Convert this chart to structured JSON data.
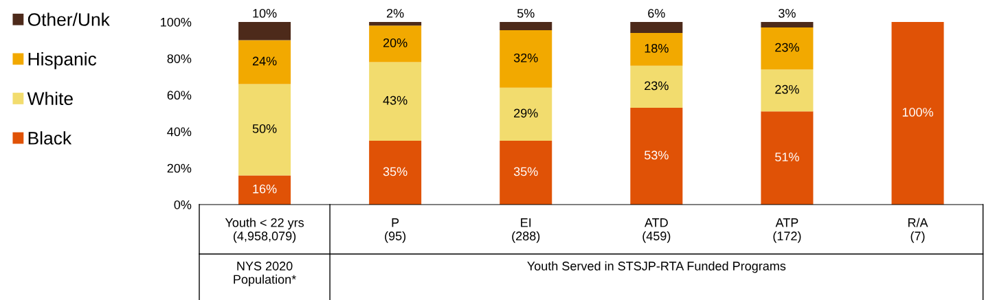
{
  "chart_data": {
    "type": "bar",
    "stacked": true,
    "categories": [
      "Youth < 22 yrs\n(4,958,079)",
      "P\n(95)",
      "EI\n(288)",
      "ATD\n(459)",
      "ATP\n(172)",
      "R/A\n(7)"
    ],
    "series": [
      {
        "name": "Black",
        "color": "#e05206",
        "values": [
          16,
          35,
          35,
          53,
          51,
          100
        ],
        "value_labels": [
          "16%",
          "35%",
          "35%",
          "53%",
          "51%",
          "100%"
        ]
      },
      {
        "name": "White",
        "color": "#f2dc6e",
        "values": [
          50,
          43,
          29,
          23,
          23,
          0
        ],
        "value_labels": [
          "50%",
          "43%",
          "29%",
          "23%",
          "23%",
          null
        ]
      },
      {
        "name": "Hispanic",
        "color": "#f2a900",
        "values": [
          24,
          20,
          31.5,
          18,
          23,
          0
        ],
        "value_labels": [
          "24%",
          "20%",
          "32%",
          "18%",
          "23%",
          null
        ]
      },
      {
        "name": "Other/Unk",
        "color": "#4d2a1a",
        "values": [
          10,
          2,
          4.5,
          6,
          3,
          0
        ],
        "value_labels": [
          "10%",
          "2%",
          "5%",
          "6%",
          "3%",
          null
        ]
      }
    ],
    "ylim": [
      0,
      100
    ],
    "yticks": [
      {
        "value": 0,
        "label": "0%"
      },
      {
        "value": 20,
        "label": "20%"
      },
      {
        "value": 40,
        "label": "40%"
      },
      {
        "value": 60,
        "label": "60%"
      },
      {
        "value": 80,
        "label": "80%"
      },
      {
        "value": 100,
        "label": "100%"
      }
    ],
    "annotations": [
      "NYS 2020\nPopulation*",
      "Youth Served in STSJP-RTA Funded Programs"
    ],
    "grid": false,
    "legend": "left"
  }
}
